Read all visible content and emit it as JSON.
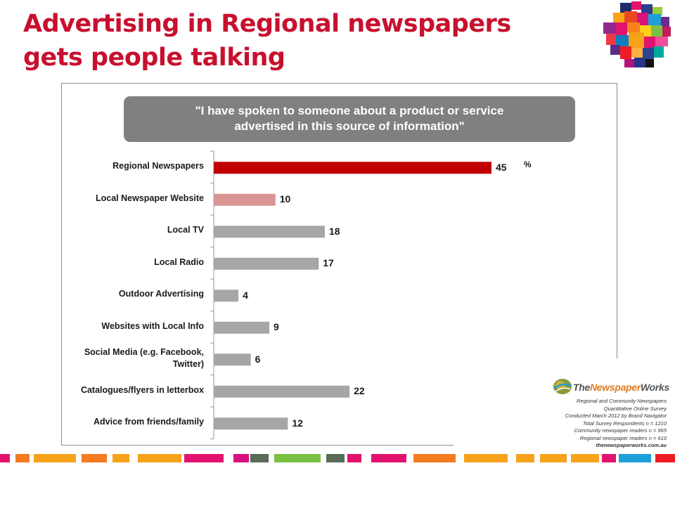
{
  "slide": {
    "title": "Advertising in Regional newspapers gets people talking"
  },
  "chart_data": {
    "type": "bar",
    "orientation": "horizontal",
    "title": "\"I have spoken to someone about a product or service advertised in this source of information\"",
    "title_lines": [
      "\"I have spoken to someone about a product or service",
      "advertised in this source of information\""
    ],
    "unit": "%",
    "categories": [
      "Regional Newspapers",
      "Local Newspaper Website",
      "Local TV",
      "Local Radio",
      "Outdoor Advertising",
      "Websites with Local Info",
      "Social Media (e.g. Facebook, Twitter)",
      "Catalogues/flyers in letterbox",
      "Advice from friends/family"
    ],
    "category_lines": [
      [
        "Regional Newspapers"
      ],
      [
        "Local Newspaper Website"
      ],
      [
        "Local TV"
      ],
      [
        "Local Radio"
      ],
      [
        "Outdoor Advertising"
      ],
      [
        "Websites with Local Info"
      ],
      [
        "Social Media (e.g. Facebook,",
        "Twitter)"
      ],
      [
        "Catalogues/flyers in letterbox"
      ],
      [
        "Advice from friends/family"
      ]
    ],
    "values": [
      45,
      10,
      18,
      17,
      4,
      9,
      6,
      22,
      12
    ],
    "bar_colors": [
      "#c00000",
      "#d99594",
      "#a6a6a6",
      "#a6a6a6",
      "#a6a6a6",
      "#a6a6a6",
      "#a6a6a6",
      "#a6a6a6",
      "#a6a6a6"
    ],
    "xlim": [
      0,
      50
    ],
    "grid": false,
    "legend": "none"
  },
  "source": {
    "brand_prefix": "The",
    "brand_highlight": "Newspaper",
    "brand_suffix": "Works",
    "notes": [
      "Regional and Community Newspapers",
      "Quantitative Online Survey",
      "Conducted March 2012 by Brand Navigator",
      "Total Survey Respondents n = 1210",
      "Community newspaper readers n = 965",
      "Regional newspaper readers n = 610"
    ],
    "website": "thenewspaperworks.com.au"
  },
  "colors": {
    "title_red": "#c8102e",
    "banner_grey": "#808080",
    "highlight_bar": "#c00000",
    "secondary_bar": "#d99594",
    "other_bar": "#a6a6a6"
  }
}
